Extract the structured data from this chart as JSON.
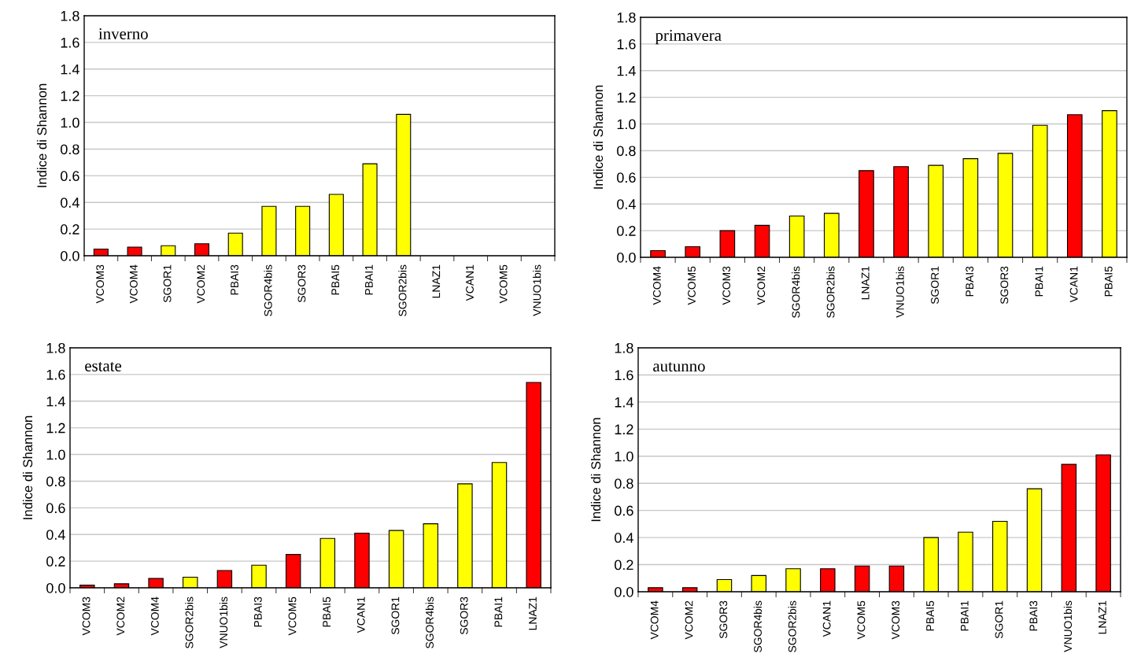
{
  "chart_data": [
    {
      "type": "bar",
      "title": "inverno",
      "ylabel": "Indice di Shannon",
      "categories": [
        "VCOM3",
        "VCOM4",
        "SGOR1",
        "VCOM2",
        "PBAI3",
        "SGOR4bis",
        "SGOR3",
        "PBAI5",
        "PBAI1",
        "SGOR2bis",
        "LNAZ1",
        "VCAN1",
        "VCOM5",
        "VNUO1bis"
      ],
      "values": [
        0.05,
        0.065,
        0.075,
        0.09,
        0.17,
        0.37,
        0.37,
        0.46,
        0.69,
        1.06,
        null,
        null,
        null,
        null
      ],
      "colors": [
        "#ff0000",
        "#ff0000",
        "#ffff00",
        "#ff0000",
        "#ffff00",
        "#ffff00",
        "#ffff00",
        "#ffff00",
        "#ffff00",
        "#ffff00",
        null,
        null,
        null,
        null
      ],
      "ylim": [
        0,
        1.8
      ],
      "yticks": [
        {
          "value": 0,
          "label": "0.0"
        },
        {
          "value": 0.2,
          "label": "0.2"
        },
        {
          "value": 0.4,
          "label": "0.4"
        },
        {
          "value": 0.6,
          "label": "0.6"
        },
        {
          "value": 0.8,
          "label": "0.8"
        },
        {
          "value": 1.0,
          "label": "1.0"
        },
        {
          "value": 1.2,
          "label": "1.2"
        },
        {
          "value": 1.4,
          "label": "1.4"
        },
        {
          "value": 1.6,
          "label": "1.6"
        },
        {
          "value": 1.8,
          "label": "1.8"
        }
      ],
      "grid": "y",
      "legend": false
    },
    {
      "type": "bar",
      "title": "primavera",
      "ylabel": "Indice di Shannon",
      "categories": [
        "VCOM4",
        "VCOM5",
        "VCOM3",
        "VCOM2",
        "SGOR4bis",
        "SGOR2bis",
        "LNAZ1",
        "VNUO1bis",
        "SGOR1",
        "PBAI3",
        "SGOR3",
        "PBAI1",
        "VCAN1",
        "PBAI5"
      ],
      "values": [
        0.05,
        0.08,
        0.2,
        0.24,
        0.31,
        0.33,
        0.65,
        0.68,
        0.69,
        0.74,
        0.78,
        0.99,
        1.07,
        1.1
      ],
      "colors": [
        "#ff0000",
        "#ff0000",
        "#ff0000",
        "#ff0000",
        "#ffff00",
        "#ffff00",
        "#ff0000",
        "#ff0000",
        "#ffff00",
        "#ffff00",
        "#ffff00",
        "#ffff00",
        "#ff0000",
        "#ffff00"
      ],
      "ylim": [
        0,
        1.8
      ],
      "yticks": [
        {
          "value": 0,
          "label": "0.0"
        },
        {
          "value": 0.2,
          "label": "0.2"
        },
        {
          "value": 0.4,
          "label": "0.4"
        },
        {
          "value": 0.6,
          "label": "0.6"
        },
        {
          "value": 0.8,
          "label": "0.8"
        },
        {
          "value": 1.0,
          "label": "1.0"
        },
        {
          "value": 1.2,
          "label": "1.2"
        },
        {
          "value": 1.4,
          "label": "1.4"
        },
        {
          "value": 1.6,
          "label": "1.6"
        },
        {
          "value": 1.8,
          "label": "1.8"
        }
      ],
      "grid": "y",
      "legend": false
    },
    {
      "type": "bar",
      "title": "estate",
      "ylabel": "Indice di Shannon",
      "categories": [
        "VCOM3",
        "VCOM2",
        "VCOM4",
        "SGOR2bis",
        "VNUO1bis",
        "PBAI3",
        "VCOM5",
        "PBAI5",
        "VCAN1",
        "SGOR1",
        "SGOR4bis",
        "SGOR3",
        "PBAI1",
        "LNAZ1"
      ],
      "values": [
        0.02,
        0.03,
        0.07,
        0.08,
        0.13,
        0.17,
        0.25,
        0.37,
        0.41,
        0.43,
        0.48,
        0.78,
        0.94,
        1.54
      ],
      "colors": [
        "#ff0000",
        "#ff0000",
        "#ff0000",
        "#ffff00",
        "#ff0000",
        "#ffff00",
        "#ff0000",
        "#ffff00",
        "#ff0000",
        "#ffff00",
        "#ffff00",
        "#ffff00",
        "#ffff00",
        "#ff0000"
      ],
      "ylim": [
        0,
        1.8
      ],
      "yticks": [
        {
          "value": 0,
          "label": "0.0"
        },
        {
          "value": 0.2,
          "label": "0.2"
        },
        {
          "value": 0.4,
          "label": "0.4"
        },
        {
          "value": 0.6,
          "label": "0.6"
        },
        {
          "value": 0.8,
          "label": "0.8"
        },
        {
          "value": 1.0,
          "label": "1.0"
        },
        {
          "value": 1.2,
          "label": "1.2"
        },
        {
          "value": 1.4,
          "label": "1.4"
        },
        {
          "value": 1.6,
          "label": "1.6"
        },
        {
          "value": 1.8,
          "label": "1.8"
        }
      ],
      "grid": "y",
      "legend": false
    },
    {
      "type": "bar",
      "title": "autunno",
      "ylabel": "Indice di Shannon",
      "categories": [
        "VCOM4",
        "VCOM2",
        "SGOR3",
        "SGOR4bis",
        "SGOR2bis",
        "VCAN1",
        "VCOM5",
        "VCOM3",
        "PBAI5",
        "PBAI1",
        "SGOR1",
        "PBAI3",
        "VNUO1bis",
        "LNAZ1"
      ],
      "values": [
        0.03,
        0.03,
        0.09,
        0.12,
        0.17,
        0.17,
        0.19,
        0.19,
        0.4,
        0.44,
        0.52,
        0.76,
        0.94,
        1.01
      ],
      "colors": [
        "#ff0000",
        "#ff0000",
        "#ffff00",
        "#ffff00",
        "#ffff00",
        "#ff0000",
        "#ff0000",
        "#ff0000",
        "#ffff00",
        "#ffff00",
        "#ffff00",
        "#ffff00",
        "#ff0000",
        "#ff0000"
      ],
      "ylim": [
        0,
        1.8
      ],
      "yticks": [
        {
          "value": 0,
          "label": "0.0"
        },
        {
          "value": 0.2,
          "label": "0.2"
        },
        {
          "value": 0.4,
          "label": "0.4"
        },
        {
          "value": 0.6,
          "label": "0.6"
        },
        {
          "value": 0.8,
          "label": "0.8"
        },
        {
          "value": 1.0,
          "label": "1.0"
        },
        {
          "value": 1.2,
          "label": "1.2"
        },
        {
          "value": 1.4,
          "label": "1.4"
        },
        {
          "value": 1.6,
          "label": "1.6"
        },
        {
          "value": 1.8,
          "label": "1.8"
        }
      ],
      "grid": "y",
      "legend": false
    }
  ]
}
